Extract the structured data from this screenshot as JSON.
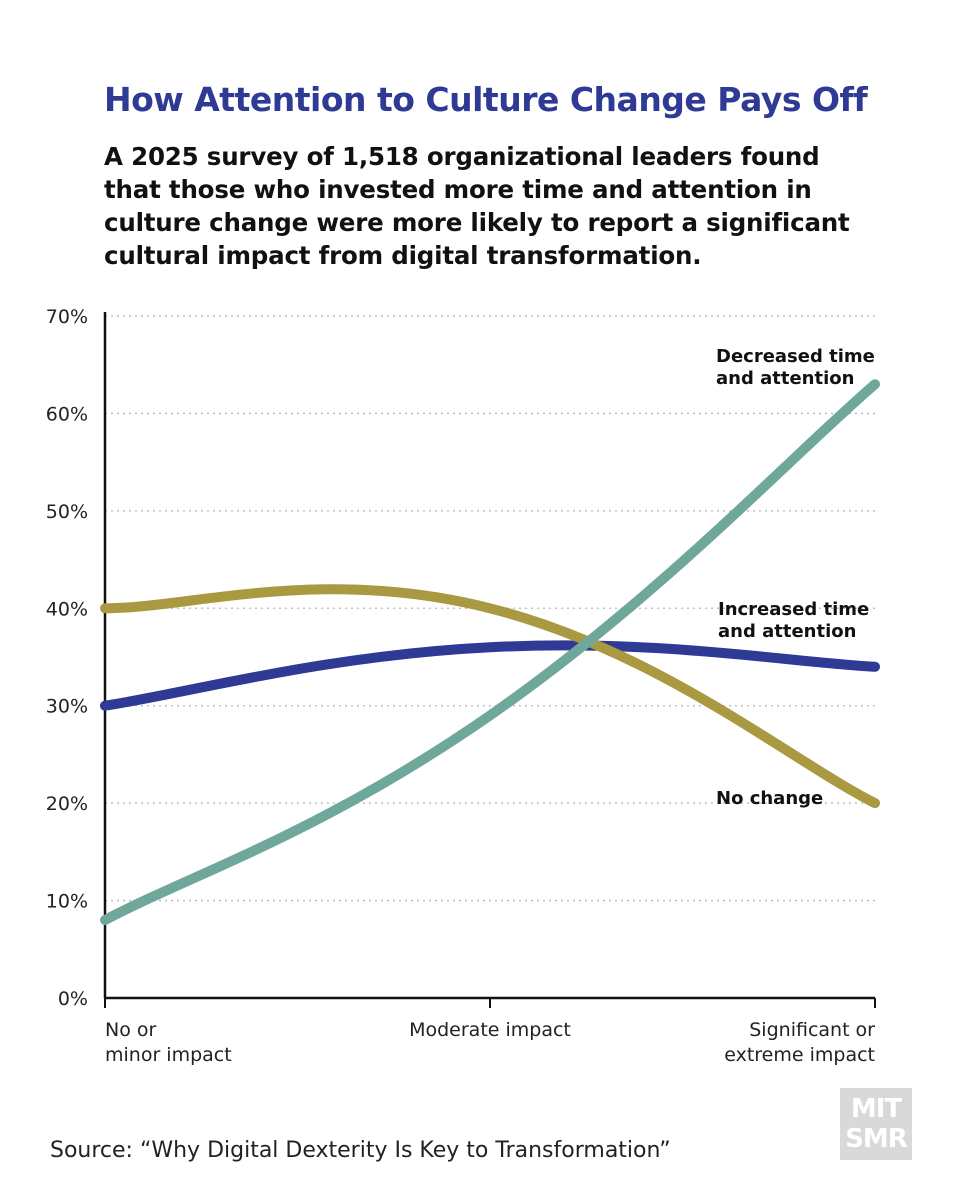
{
  "header": {
    "title": "How Attention to Culture Change Pays Off",
    "subtitle": "A 2025 survey of 1,518 organizational leaders found that those who invested more time and attention in culture change were more likely to report a significant cultural impact from digital transformation."
  },
  "chart_data": {
    "type": "line",
    "categories": [
      "No or minor impact",
      "Moderate impact",
      "Significant or extreme impact"
    ],
    "category_label_lines": [
      [
        "No or",
        "minor impact"
      ],
      [
        "Moderate impact"
      ],
      [
        "Significant or",
        "extreme impact"
      ]
    ],
    "y_ticks": [
      "0%",
      "10%",
      "20%",
      "30%",
      "40%",
      "50%",
      "60%",
      "70%"
    ],
    "ylim": [
      0,
      70
    ],
    "grid": "horizontal dotted",
    "series": [
      {
        "name": "Decreased time and attention",
        "label_lines": [
          "Decreased time",
          "and attention"
        ],
        "values": [
          8,
          29,
          63
        ],
        "color": "#6fa89b"
      },
      {
        "name": "Increased time and attention",
        "label_lines": [
          "Increased time",
          "and attention"
        ],
        "values": [
          30,
          36,
          34
        ],
        "color": "#2e3a94"
      },
      {
        "name": "No change",
        "label_lines": [
          "No change"
        ],
        "values": [
          40,
          40,
          20
        ],
        "color": "#a99a42"
      }
    ]
  },
  "footer": {
    "source": "Source: “Why Digital Dexterity Is Key to Transformation”",
    "logo_line1": "MIT",
    "logo_line2": "SMR"
  }
}
